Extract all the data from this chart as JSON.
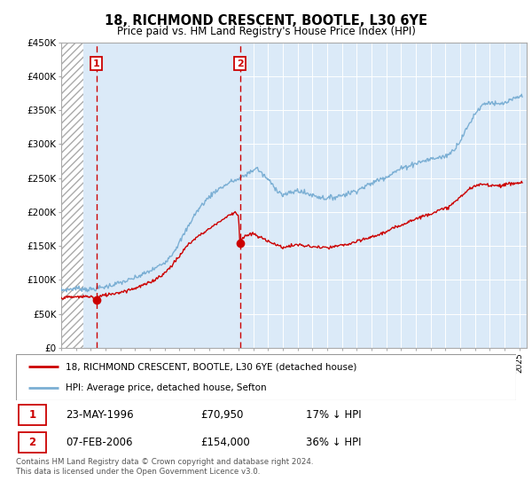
{
  "title": "18, RICHMOND CRESCENT, BOOTLE, L30 6YE",
  "subtitle": "Price paid vs. HM Land Registry's House Price Index (HPI)",
  "legend_line1": "18, RICHMOND CRESCENT, BOOTLE, L30 6YE (detached house)",
  "legend_line2": "HPI: Average price, detached house, Sefton",
  "footnote": "Contains HM Land Registry data © Crown copyright and database right 2024.\nThis data is licensed under the Open Government Licence v3.0.",
  "marker1_date": "23-MAY-1996",
  "marker1_price": "£70,950",
  "marker1_hpi": "17% ↓ HPI",
  "marker1_x": 1996.38,
  "marker1_y": 70950,
  "marker2_date": "07-FEB-2006",
  "marker2_price": "£154,000",
  "marker2_hpi": "36% ↓ HPI",
  "marker2_x": 2006.09,
  "marker2_y": 154000,
  "ylim": [
    0,
    450000
  ],
  "xlim_start": 1994.0,
  "xlim_end": 2025.5,
  "hatch_end": 1995.5,
  "plot_bg": "#dbeaf8",
  "red_color": "#cc0000",
  "blue_color": "#7bafd4",
  "vline_color": "#cc0000",
  "marker_box_color": "#cc0000",
  "grid_color": "#ffffff",
  "hpi_anchors": [
    [
      1994.0,
      85000
    ],
    [
      1994.5,
      86000
    ],
    [
      1995.0,
      88000
    ],
    [
      1995.5,
      87000
    ],
    [
      1996.0,
      86000
    ],
    [
      1996.5,
      88000
    ],
    [
      1997.0,
      90000
    ],
    [
      1997.5,
      93000
    ],
    [
      1998.0,
      96000
    ],
    [
      1998.5,
      99000
    ],
    [
      1999.0,
      103000
    ],
    [
      1999.5,
      108000
    ],
    [
      2000.0,
      113000
    ],
    [
      2000.5,
      119000
    ],
    [
      2001.0,
      126000
    ],
    [
      2001.5,
      138000
    ],
    [
      2002.0,
      155000
    ],
    [
      2002.5,
      175000
    ],
    [
      2003.0,
      195000
    ],
    [
      2003.5,
      210000
    ],
    [
      2004.0,
      222000
    ],
    [
      2004.5,
      232000
    ],
    [
      2005.0,
      238000
    ],
    [
      2005.5,
      245000
    ],
    [
      2006.0,
      248000
    ],
    [
      2006.5,
      255000
    ],
    [
      2007.0,
      262000
    ],
    [
      2007.25,
      265000
    ],
    [
      2007.5,
      258000
    ],
    [
      2008.0,
      248000
    ],
    [
      2008.5,
      235000
    ],
    [
      2009.0,
      225000
    ],
    [
      2009.5,
      228000
    ],
    [
      2010.0,
      232000
    ],
    [
      2010.5,
      228000
    ],
    [
      2011.0,
      225000
    ],
    [
      2011.5,
      222000
    ],
    [
      2012.0,
      220000
    ],
    [
      2012.5,
      222000
    ],
    [
      2013.0,
      225000
    ],
    [
      2013.5,
      228000
    ],
    [
      2014.0,
      232000
    ],
    [
      2014.5,
      237000
    ],
    [
      2015.0,
      242000
    ],
    [
      2015.5,
      248000
    ],
    [
      2016.0,
      252000
    ],
    [
      2016.5,
      258000
    ],
    [
      2017.0,
      264000
    ],
    [
      2017.5,
      268000
    ],
    [
      2018.0,
      272000
    ],
    [
      2018.5,
      275000
    ],
    [
      2019.0,
      278000
    ],
    [
      2019.5,
      280000
    ],
    [
      2020.0,
      282000
    ],
    [
      2020.5,
      290000
    ],
    [
      2021.0,
      305000
    ],
    [
      2021.5,
      325000
    ],
    [
      2022.0,
      345000
    ],
    [
      2022.5,
      358000
    ],
    [
      2023.0,
      362000
    ],
    [
      2023.5,
      358000
    ],
    [
      2024.0,
      360000
    ],
    [
      2024.5,
      365000
    ],
    [
      2025.0,
      370000
    ]
  ],
  "red_anchors": [
    [
      1994.0,
      74000
    ],
    [
      1994.5,
      74500
    ],
    [
      1995.0,
      75000
    ],
    [
      1995.5,
      75500
    ],
    [
      1996.0,
      76000
    ],
    [
      1996.38,
      70950
    ],
    [
      1996.5,
      75000
    ],
    [
      1997.0,
      78000
    ],
    [
      1997.5,
      80000
    ],
    [
      1998.0,
      82000
    ],
    [
      1998.5,
      85000
    ],
    [
      1999.0,
      88000
    ],
    [
      1999.5,
      92000
    ],
    [
      2000.0,
      96000
    ],
    [
      2000.5,
      103000
    ],
    [
      2001.0,
      110000
    ],
    [
      2001.5,
      122000
    ],
    [
      2002.0,
      135000
    ],
    [
      2002.5,
      150000
    ],
    [
      2003.0,
      160000
    ],
    [
      2003.5,
      168000
    ],
    [
      2004.0,
      175000
    ],
    [
      2004.5,
      183000
    ],
    [
      2005.0,
      190000
    ],
    [
      2005.5,
      197000
    ],
    [
      2005.75,
      200000
    ],
    [
      2006.0,
      196000
    ],
    [
      2006.09,
      154000
    ],
    [
      2006.2,
      160000
    ],
    [
      2006.5,
      165000
    ],
    [
      2007.0,
      168000
    ],
    [
      2007.5,
      162000
    ],
    [
      2008.0,
      158000
    ],
    [
      2008.5,
      152000
    ],
    [
      2009.0,
      148000
    ],
    [
      2009.5,
      150000
    ],
    [
      2010.0,
      152000
    ],
    [
      2010.5,
      150000
    ],
    [
      2011.0,
      149000
    ],
    [
      2011.5,
      148000
    ],
    [
      2012.0,
      147000
    ],
    [
      2012.5,
      149000
    ],
    [
      2013.0,
      151000
    ],
    [
      2013.5,
      153000
    ],
    [
      2014.0,
      156000
    ],
    [
      2014.5,
      160000
    ],
    [
      2015.0,
      163000
    ],
    [
      2015.5,
      167000
    ],
    [
      2016.0,
      171000
    ],
    [
      2016.5,
      176000
    ],
    [
      2017.0,
      181000
    ],
    [
      2017.5,
      186000
    ],
    [
      2018.0,
      190000
    ],
    [
      2018.5,
      194000
    ],
    [
      2019.0,
      198000
    ],
    [
      2019.5,
      202000
    ],
    [
      2020.0,
      205000
    ],
    [
      2020.5,
      212000
    ],
    [
      2021.0,
      222000
    ],
    [
      2021.5,
      232000
    ],
    [
      2022.0,
      238000
    ],
    [
      2022.5,
      241000
    ],
    [
      2023.0,
      240000
    ],
    [
      2023.5,
      239000
    ],
    [
      2024.0,
      240000
    ],
    [
      2024.5,
      242000
    ],
    [
      2025.0,
      243000
    ]
  ]
}
